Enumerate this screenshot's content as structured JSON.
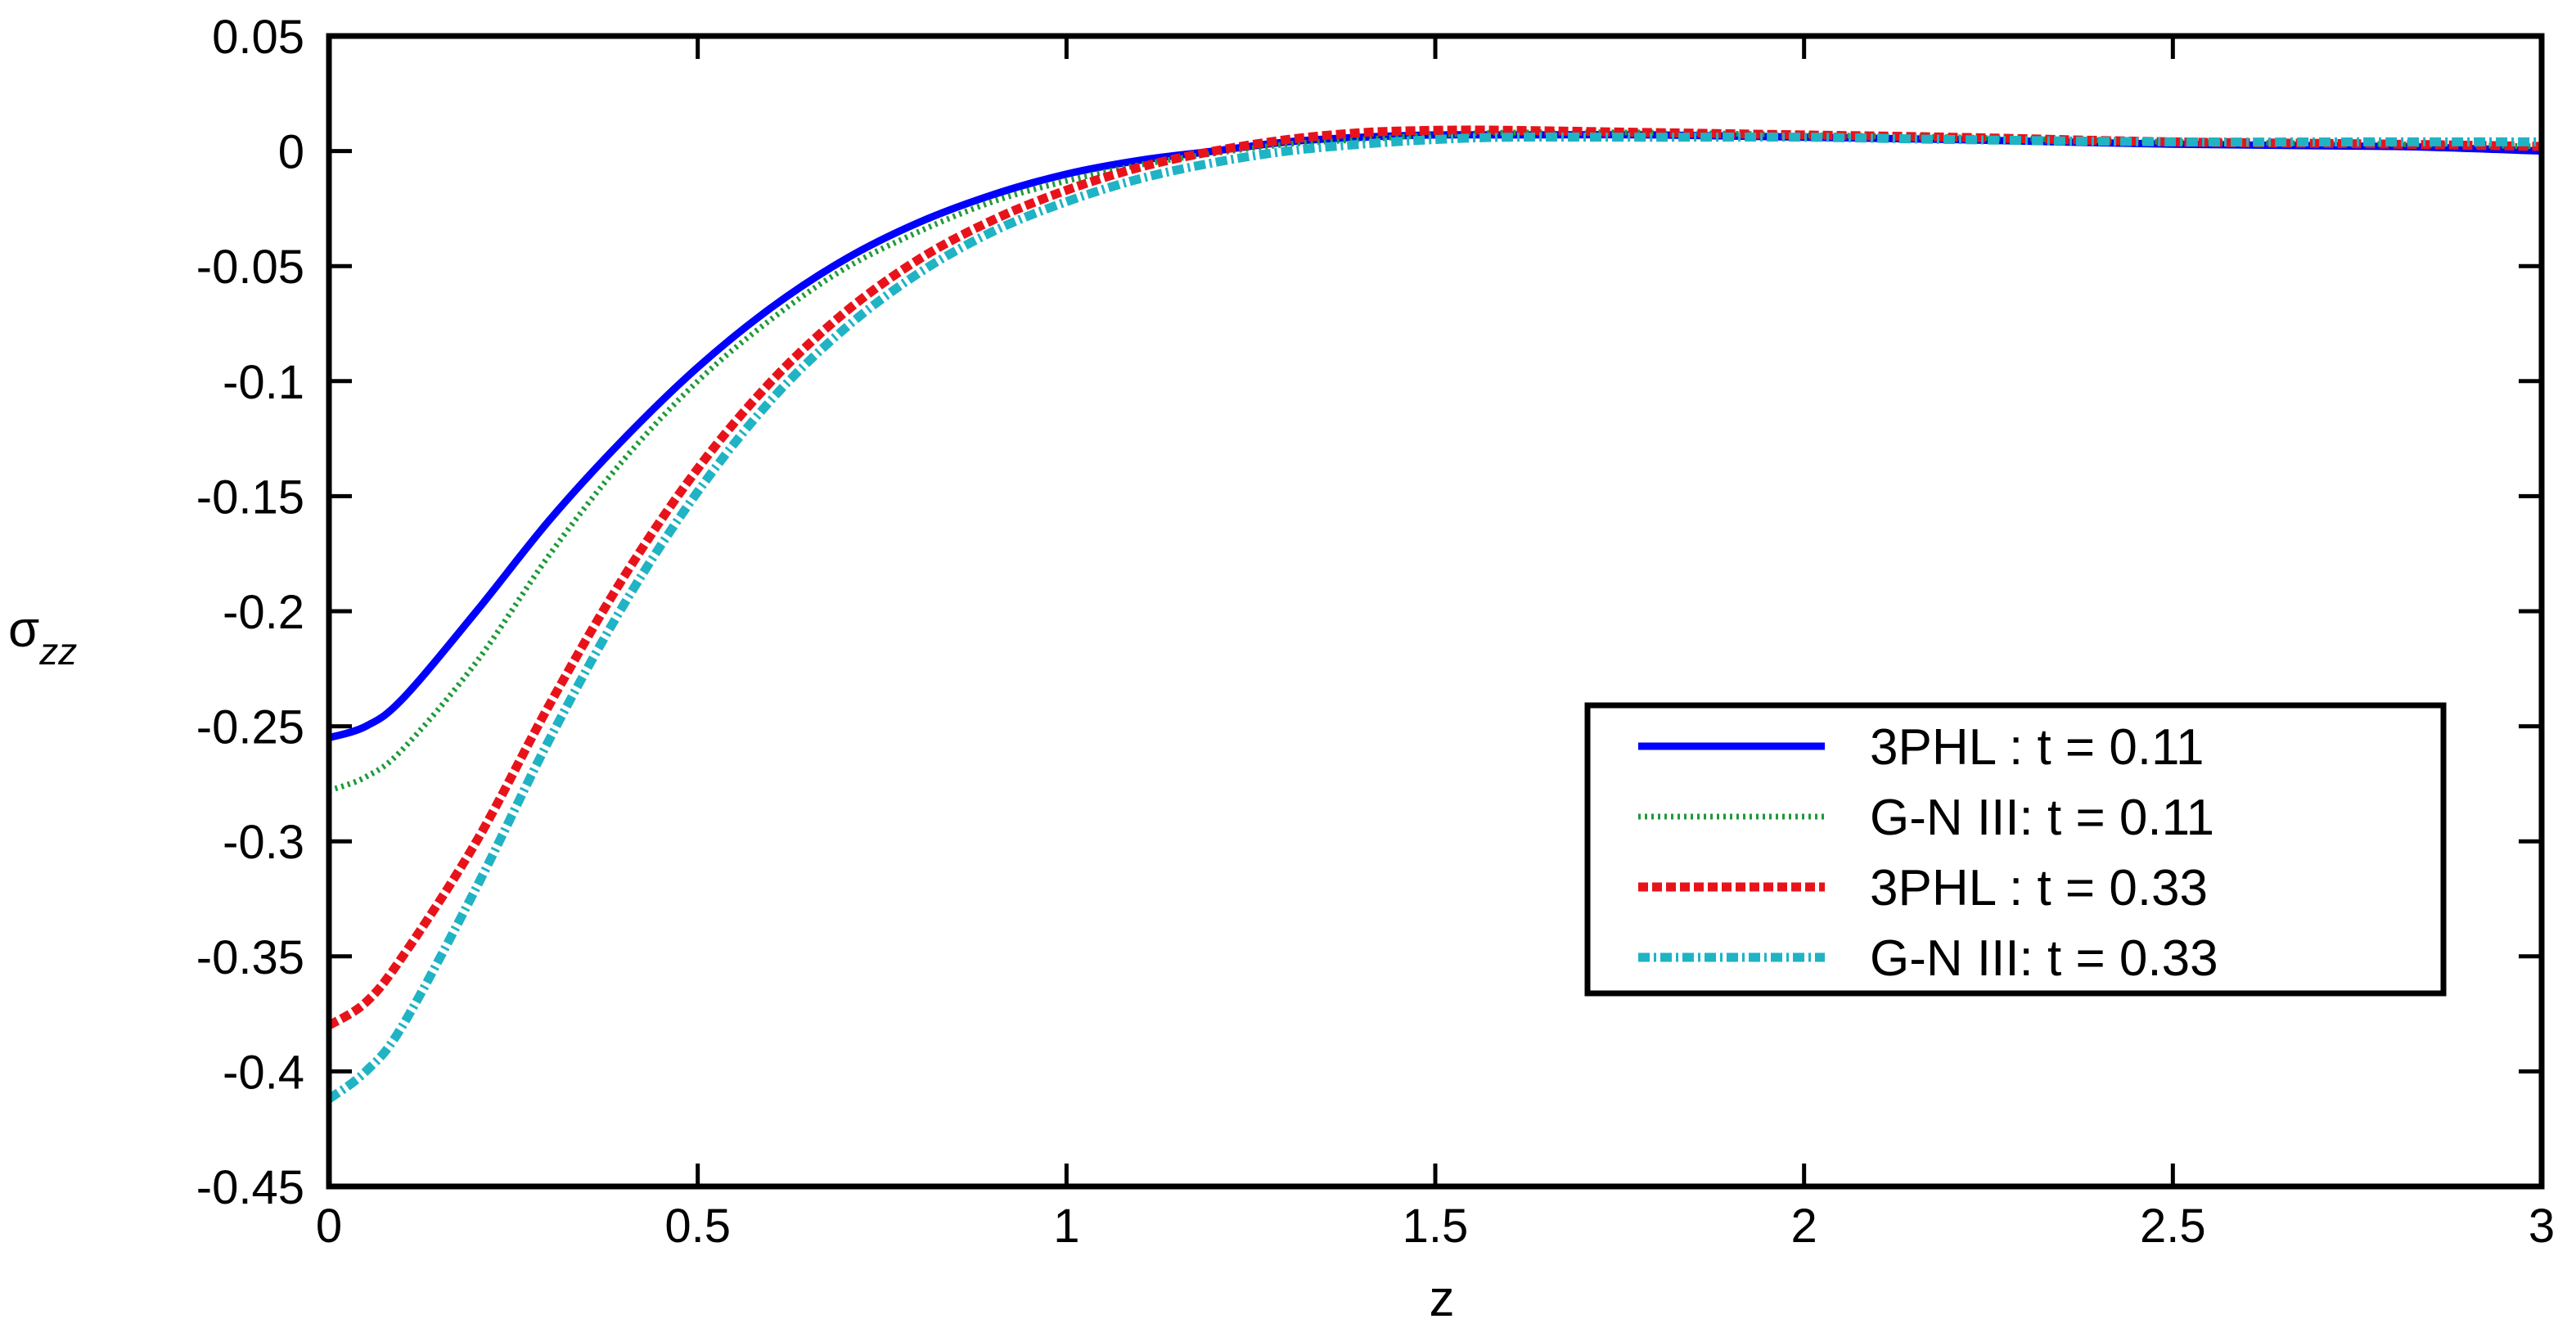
{
  "chart_data": {
    "type": "line",
    "title": "",
    "xlabel": "z",
    "ylabel": {
      "main": "σ",
      "subscript": "zz"
    },
    "xlim": [
      0,
      3
    ],
    "ylim": [
      -0.45,
      0.05
    ],
    "xticks": [
      0,
      0.5,
      1,
      1.5,
      2,
      2.5,
      3
    ],
    "xtick_labels": [
      "0",
      "0.5",
      "1",
      "1.5",
      "2",
      "2.5",
      "3"
    ],
    "yticks": [
      0.05,
      0,
      -0.05,
      -0.1,
      -0.15,
      -0.2,
      -0.25,
      -0.3,
      -0.35,
      -0.4,
      -0.45
    ],
    "ytick_labels": [
      "0.05",
      "0",
      "-0.05",
      "-0.1",
      "-0.15",
      "-0.2",
      "-0.25",
      "-0.3",
      "-0.35",
      "-0.4",
      "-0.45"
    ],
    "grid": false,
    "legend_position": "right",
    "series": [
      {
        "name": "3PHL : t = 0.11",
        "color": "#0000ff",
        "style": "solid",
        "x": [
          0,
          0.05,
          0.1,
          0.2,
          0.3,
          0.4,
          0.5,
          0.6,
          0.7,
          0.8,
          0.9,
          1.0,
          1.1,
          1.2,
          1.3,
          1.4,
          1.5,
          1.6,
          1.8,
          2.0,
          2.2,
          2.5,
          2.8,
          3.0
        ],
        "y": [
          -0.255,
          -0.25,
          -0.238,
          -0.2,
          -0.16,
          -0.125,
          -0.094,
          -0.068,
          -0.047,
          -0.031,
          -0.019,
          -0.01,
          -0.004,
          0.0,
          0.004,
          0.006,
          0.007,
          0.007,
          0.007,
          0.006,
          0.005,
          0.003,
          0.002,
          0.0
        ]
      },
      {
        "name": "G-N III: t = 0.11",
        "color": "#1f9a3a",
        "style": "dotted",
        "x": [
          0,
          0.05,
          0.1,
          0.2,
          0.3,
          0.4,
          0.5,
          0.6,
          0.7,
          0.8,
          0.9,
          1.0,
          1.1,
          1.2,
          1.3,
          1.4,
          1.5,
          1.6,
          1.8,
          2.0,
          2.2,
          2.5,
          2.8,
          3.0
        ],
        "y": [
          -0.278,
          -0.272,
          -0.26,
          -0.222,
          -0.175,
          -0.134,
          -0.1,
          -0.073,
          -0.051,
          -0.035,
          -0.022,
          -0.013,
          -0.006,
          -0.001,
          0.003,
          0.005,
          0.007,
          0.008,
          0.008,
          0.007,
          0.006,
          0.004,
          0.003,
          0.002
        ]
      },
      {
        "name": "3PHL : t = 0.33",
        "color": "#e8131a",
        "style": "dashed",
        "x": [
          0,
          0.05,
          0.1,
          0.2,
          0.3,
          0.4,
          0.5,
          0.6,
          0.7,
          0.8,
          0.9,
          1.0,
          1.1,
          1.2,
          1.3,
          1.4,
          1.5,
          1.6,
          1.8,
          2.0,
          2.2,
          2.5,
          2.8,
          3.0
        ],
        "y": [
          -0.38,
          -0.37,
          -0.35,
          -0.3,
          -0.24,
          -0.185,
          -0.138,
          -0.1,
          -0.07,
          -0.047,
          -0.03,
          -0.017,
          -0.007,
          0.0,
          0.005,
          0.008,
          0.009,
          0.009,
          0.008,
          0.007,
          0.006,
          0.004,
          0.003,
          0.002
        ]
      },
      {
        "name": "G-N III: t = 0.33",
        "color": "#1fb3c4",
        "style": "dashdot",
        "x": [
          0,
          0.05,
          0.1,
          0.2,
          0.3,
          0.4,
          0.5,
          0.6,
          0.7,
          0.8,
          0.9,
          1.0,
          1.1,
          1.2,
          1.3,
          1.4,
          1.5,
          1.6,
          1.8,
          2.0,
          2.2,
          2.5,
          2.8,
          3.0
        ],
        "y": [
          -0.412,
          -0.4,
          -0.38,
          -0.32,
          -0.255,
          -0.197,
          -0.148,
          -0.108,
          -0.077,
          -0.053,
          -0.035,
          -0.022,
          -0.012,
          -0.005,
          0.0,
          0.003,
          0.005,
          0.006,
          0.006,
          0.006,
          0.005,
          0.004,
          0.004,
          0.004
        ]
      }
    ]
  }
}
